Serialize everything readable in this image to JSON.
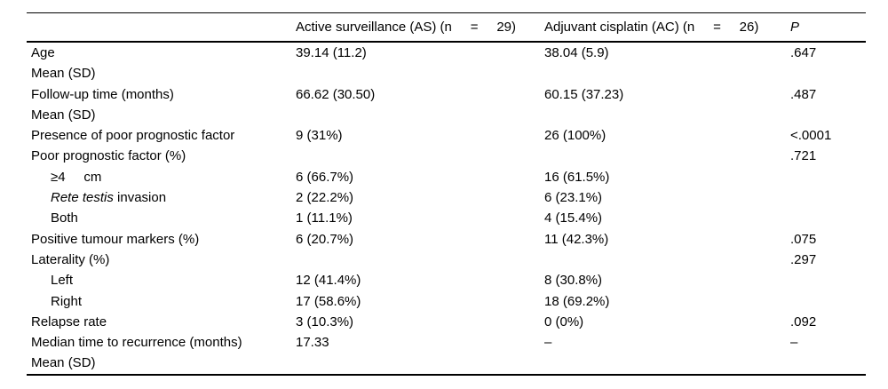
{
  "table": {
    "headers": {
      "col1": "",
      "col2": "Active surveillance (AS) (n     =     29)",
      "col3": "Adjuvant cisplatin (AC) (n     =     26)",
      "col4": "P"
    },
    "rows": [
      {
        "label": "Age",
        "as": "39.14 (11.2)",
        "ac": "38.04 (5.9)",
        "p": ".647"
      },
      {
        "label": "Mean (SD)",
        "as": "",
        "ac": "",
        "p": ""
      },
      {
        "label": "Follow-up time (months)",
        "as": "66.62 (30.50)",
        "ac": "60.15 (37.23)",
        "p": ".487"
      },
      {
        "label": "Mean (SD)",
        "as": "",
        "ac": "",
        "p": ""
      },
      {
        "label": "Presence of poor prognostic factor",
        "as": "9 (31%)",
        "ac": "26 (100%)",
        "p": "<.0001"
      },
      {
        "label": "Poor prognostic factor (%)",
        "as": "",
        "ac": "",
        "p": ".721"
      },
      {
        "label": "≥4     cm",
        "as": "6 (66.7%)",
        "ac": "16 (61.5%)",
        "p": ""
      },
      {
        "label_italic": "Rete testis",
        "label_rest": " invasion",
        "as": "2 (22.2%)",
        "ac": "6 (23.1%)",
        "p": ""
      },
      {
        "label": "Both",
        "as": "1 (11.1%)",
        "ac": "4 (15.4%)",
        "p": ""
      },
      {
        "label": "Positive tumour markers (%)",
        "as": "6 (20.7%)",
        "ac": "11 (42.3%)",
        "p": ".075"
      },
      {
        "label": "Laterality (%)",
        "as": "",
        "ac": "",
        "p": ".297"
      },
      {
        "label": "Left",
        "as": "12 (41.4%)",
        "ac": "8 (30.8%)",
        "p": ""
      },
      {
        "label": "Right",
        "as": "17 (58.6%)",
        "ac": "18 (69.2%)",
        "p": ""
      },
      {
        "label": "Relapse rate",
        "as": "3 (10.3%)",
        "ac": "0 (0%)",
        "p": ".092"
      },
      {
        "label": "Median time to recurrence (months)",
        "as": "17.33",
        "ac": "–",
        "p": "–"
      },
      {
        "label": "Mean (SD)",
        "as": "",
        "ac": "",
        "p": ""
      }
    ]
  }
}
